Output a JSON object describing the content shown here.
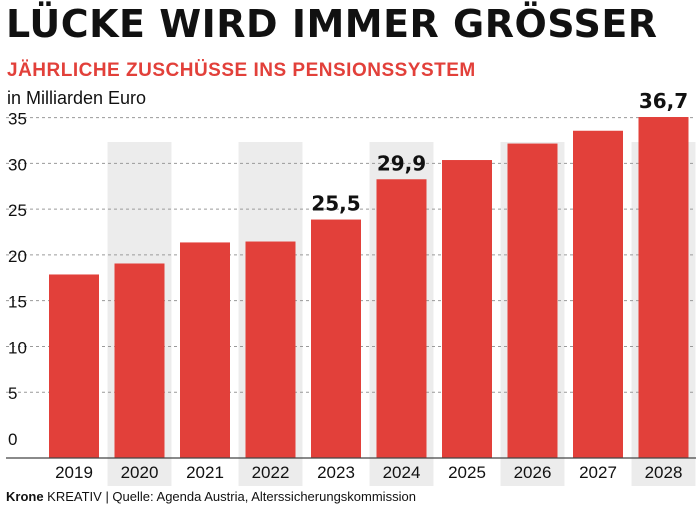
{
  "header": {
    "title": "LÜCKE WIRD IMMER GRÖSSER",
    "subtitle": "JÄHRLICHE ZUSCHÜSSE INS PENSIONSSYSTEM",
    "unit": "in Milliarden Euro"
  },
  "footer": {
    "brand": "Krone",
    "brand_suffix": " KREATIV | Quelle: Agenda Austria, Alterssicherungskommission"
  },
  "colors": {
    "bar": "#e2403a",
    "band": "#ececec",
    "text": "#111111",
    "grid": "#9a9a9a"
  },
  "chart_data": {
    "type": "bar",
    "categories": [
      "2019",
      "2020",
      "2021",
      "2022",
      "2023",
      "2024",
      "2025",
      "2026",
      "2027",
      "2028"
    ],
    "values": [
      19.5,
      20.7,
      23.0,
      23.1,
      25.5,
      29.9,
      32.0,
      33.8,
      35.2,
      36.7
    ],
    "data_labels": {
      "2023": "25,5",
      "2024": "29,9",
      "2028": "36,7"
    },
    "y_ticks": [
      0,
      5,
      10,
      15,
      20,
      25,
      30,
      35
    ],
    "ylim": [
      0,
      37
    ],
    "shaded_columns": [
      "2020",
      "2022",
      "2024",
      "2026",
      "2028"
    ],
    "grid": "dashed horizontal"
  }
}
